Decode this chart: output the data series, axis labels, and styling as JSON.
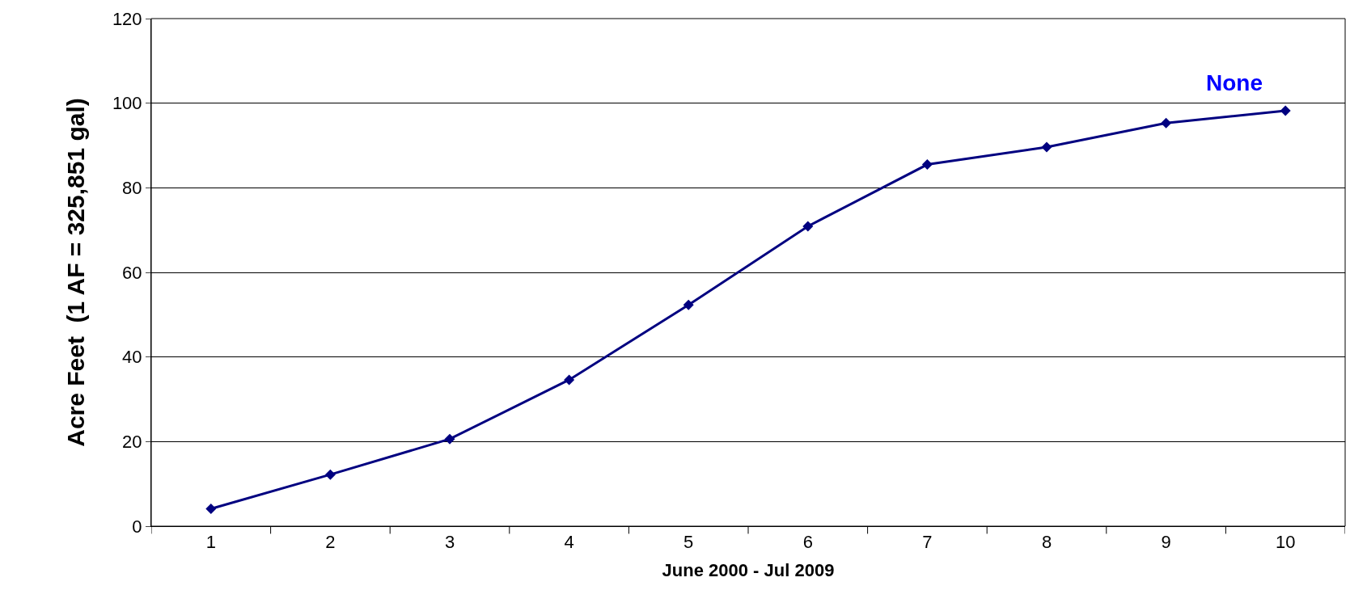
{
  "chart_data": {
    "type": "line",
    "xlabel": "June 2000 - Jul 2009",
    "ylabel": "Acre Feet  (1 AF = 325,851 gal)",
    "categories": [
      "1",
      "2",
      "3",
      "4",
      "5",
      "6",
      "7",
      "8",
      "9",
      "10"
    ],
    "series": [
      {
        "color": "#000080",
        "values": [
          4.1,
          12.2,
          20.6,
          34.6,
          52.3,
          70.9,
          85.5,
          89.6,
          95.3,
          98.2
        ]
      }
    ],
    "ylim": [
      0,
      120
    ],
    "yticks": [
      0,
      20,
      40,
      60,
      80,
      100,
      120
    ],
    "grid": "y",
    "legend": false,
    "marker": "diamond",
    "line_style": "solid",
    "annotations": [
      "None"
    ]
  }
}
